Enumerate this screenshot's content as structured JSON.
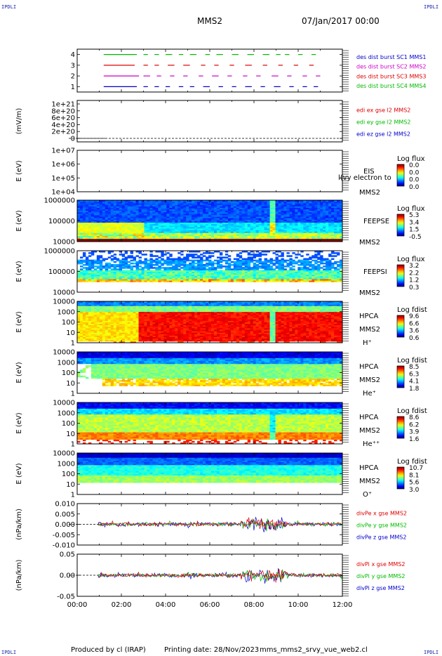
{
  "header": {
    "corner_label": "IPDLI",
    "spacecraft": "MMS2",
    "date": "07/Jan/2017 00:00"
  },
  "footer": {
    "produced_by": "Produced by cl (IRAP)",
    "printing_date": "Printing date: 28/Nov/2023",
    "file_name": "mms_mms2_srvy_vue_web2.cl"
  },
  "colors": {
    "red": "#dd0000",
    "green": "#00bb00",
    "blue": "#0000cc",
    "magenta": "#cc00cc"
  },
  "chart_data": {
    "type": "multi-panel-spectrogram",
    "x_axis": {
      "label": "",
      "range": [
        "00:00",
        "12:00"
      ],
      "ticks": [
        "00:00",
        "02:00",
        "04:00",
        "06:00",
        "08:00",
        "10:00",
        "12:00"
      ]
    },
    "panels": [
      {
        "id": "burst",
        "kind": "availability",
        "ylabel": "",
        "yticks": [
          "4",
          "3",
          "2",
          "1"
        ],
        "legend": [
          {
            "text": "des dist burst SC1 MMS1",
            "color": "#0000cc"
          },
          {
            "text": "des dist burst SC2 MMS2",
            "color": "#cc00cc"
          },
          {
            "text": "des dist burst SC3 MMS3",
            "color": "#dd0000"
          },
          {
            "text": "des dist burst SC4 MMS4",
            "color": "#00bb00"
          }
        ],
        "rows": [
          {
            "level": 4,
            "color": "#00bb00",
            "intervals": [
              [
                1.2,
                2.7
              ],
              [
                3.0,
                3.2
              ],
              [
                3.5,
                3.7
              ],
              [
                4.0,
                4.3
              ],
              [
                4.6,
                4.8
              ],
              [
                5.1,
                5.4
              ],
              [
                5.8,
                6.0
              ],
              [
                6.3,
                6.6
              ],
              [
                7.0,
                7.3
              ],
              [
                7.7,
                8.0
              ],
              [
                8.4,
                8.7
              ],
              [
                9.0,
                9.2
              ],
              [
                9.4,
                9.6
              ],
              [
                10.0,
                10.2
              ],
              [
                10.6,
                10.8
              ]
            ]
          },
          {
            "level": 3,
            "color": "#dd0000",
            "intervals": [
              [
                1.2,
                2.6
              ],
              [
                3.0,
                3.2
              ],
              [
                3.5,
                3.7
              ],
              [
                4.1,
                4.4
              ],
              [
                4.8,
                5.1
              ],
              [
                5.6,
                5.8
              ],
              [
                6.2,
                6.4
              ],
              [
                6.9,
                7.1
              ],
              [
                7.6,
                7.9
              ],
              [
                8.4,
                8.6
              ],
              [
                9.1,
                9.3
              ],
              [
                9.8,
                10.0
              ],
              [
                10.5,
                10.7
              ]
            ]
          },
          {
            "level": 2,
            "color": "#cc00cc",
            "intervals": [
              [
                1.2,
                2.8
              ],
              [
                3.0,
                3.3
              ],
              [
                3.6,
                3.8
              ],
              [
                4.2,
                4.4
              ],
              [
                4.8,
                5.0
              ],
              [
                5.5,
                5.7
              ],
              [
                6.1,
                6.4
              ],
              [
                6.8,
                7.0
              ],
              [
                7.5,
                7.7
              ],
              [
                8.1,
                8.3
              ],
              [
                8.8,
                9.1
              ],
              [
                9.5,
                9.7
              ],
              [
                10.2,
                10.4
              ],
              [
                10.8,
                11.0
              ]
            ]
          },
          {
            "level": 1,
            "color": "#0000cc",
            "intervals": [
              [
                1.2,
                2.7
              ],
              [
                3.0,
                3.2
              ],
              [
                3.5,
                3.7
              ],
              [
                4.0,
                4.2
              ],
              [
                4.6,
                4.8
              ],
              [
                5.1,
                5.3
              ],
              [
                5.7,
                6.0
              ],
              [
                6.4,
                6.6
              ],
              [
                7.0,
                7.2
              ],
              [
                7.6,
                7.9
              ],
              [
                8.3,
                8.5
              ],
              [
                8.9,
                9.2
              ],
              [
                9.6,
                9.8
              ],
              [
                10.2,
                10.4
              ],
              [
                10.7,
                10.9
              ]
            ]
          }
        ]
      },
      {
        "id": "edi",
        "kind": "line",
        "ylabel": "(mV/m)",
        "yticks": [
          "1e+21",
          "8e+20",
          "6e+20",
          "4e+20",
          "2e+20",
          "0"
        ],
        "legend": [
          {
            "text": "edi ex gse l2 MMS2",
            "color": "#dd0000"
          },
          {
            "text": "edi ey gse l2 MMS2",
            "color": "#00bb00"
          },
          {
            "text": "edi ez gse l2 MMS2",
            "color": "#0000cc"
          }
        ]
      },
      {
        "id": "eis",
        "kind": "spectrogram",
        "ylabel": "E (eV)",
        "yticks": [
          "1e+07",
          "1e+06",
          "1e+05",
          "1e+04"
        ],
        "labels": [
          "EIS",
          "MMS2"
        ],
        "overlay_text": "l(vy electron to",
        "colorbar": {
          "title": "Log flux",
          "ticks": [
            "0.0",
            "0.0",
            "0.0",
            "0.0"
          ]
        }
      },
      {
        "id": "feepse",
        "kind": "spectrogram",
        "ylabel": "E (eV)",
        "yticks": [
          "1000000",
          "100000",
          "10000"
        ],
        "labels": [
          "FEEPSE",
          "MMS2"
        ],
        "colorbar": {
          "title": "Log flux",
          "ticks": [
            "5.3",
            "3.4",
            "1.5",
            "-0.5"
          ]
        }
      },
      {
        "id": "feepsi",
        "kind": "spectrogram",
        "ylabel": "E (eV)",
        "yticks": [
          "1000000",
          "100000",
          "10000"
        ],
        "labels": [
          "FEEPSI",
          "MMS2"
        ],
        "colorbar": {
          "title": "Log flux",
          "ticks": [
            "3.2",
            "2.2",
            "1.2",
            "0.3"
          ]
        }
      },
      {
        "id": "hpca_h",
        "kind": "spectrogram",
        "ylabel": "E (eV)",
        "yticks": [
          "10000",
          "1000",
          "100",
          "10",
          "1"
        ],
        "labels": [
          "HPCA",
          "MMS2",
          "H⁺"
        ],
        "colorbar": {
          "title": "Log fdist",
          "ticks": [
            "9.6",
            "6.6",
            "3.6",
            "0.6"
          ]
        }
      },
      {
        "id": "hpca_he",
        "kind": "spectrogram",
        "ylabel": "E (eV)",
        "yticks": [
          "10000",
          "1000",
          "100",
          "10",
          "1"
        ],
        "labels": [
          "HPCA",
          "MMS2",
          "He⁺"
        ],
        "colorbar": {
          "title": "Log fdist",
          "ticks": [
            "8.5",
            "6.3",
            "4.1",
            "1.8"
          ]
        }
      },
      {
        "id": "hpca_hepp",
        "kind": "spectrogram",
        "ylabel": "E (eV)",
        "yticks": [
          "10000",
          "1000",
          "100",
          "10",
          "1"
        ],
        "labels": [
          "HPCA",
          "MMS2",
          "He⁺⁺"
        ],
        "colorbar": {
          "title": "Log fdist",
          "ticks": [
            "8.6",
            "6.2",
            "3.9",
            "1.6"
          ]
        }
      },
      {
        "id": "hpca_o",
        "kind": "spectrogram",
        "ylabel": "E (eV)",
        "yticks": [
          "10000",
          "1000",
          "100",
          "10",
          "1"
        ],
        "labels": [
          "HPCA",
          "MMS2",
          "O⁺"
        ],
        "colorbar": {
          "title": "Log fdist",
          "ticks": [
            "10.7",
            "8.1",
            "5.6",
            "3.0"
          ]
        }
      },
      {
        "id": "divpe",
        "kind": "line",
        "ylabel": "(nPa/km)",
        "yticks": [
          "0.010",
          "0.005",
          "0.000",
          "-0.005",
          "-0.010"
        ],
        "legend": [
          {
            "text": "divPe x gse MMS2",
            "color": "#dd0000"
          },
          {
            "text": "divPe y gse MMS2",
            "color": "#00bb00"
          },
          {
            "text": "divPe z gse MMS2",
            "color": "#0000cc"
          }
        ]
      },
      {
        "id": "divpi",
        "kind": "line",
        "ylabel": "(nPa/km)",
        "yticks": [
          "0.05",
          "0.00",
          "-0.05"
        ],
        "legend": [
          {
            "text": "divPi x gse MMS2",
            "color": "#dd0000"
          },
          {
            "text": "divPi y gse MMS2",
            "color": "#00bb00"
          },
          {
            "text": "divPi z gse MMS2",
            "color": "#0000cc"
          }
        ]
      }
    ]
  }
}
